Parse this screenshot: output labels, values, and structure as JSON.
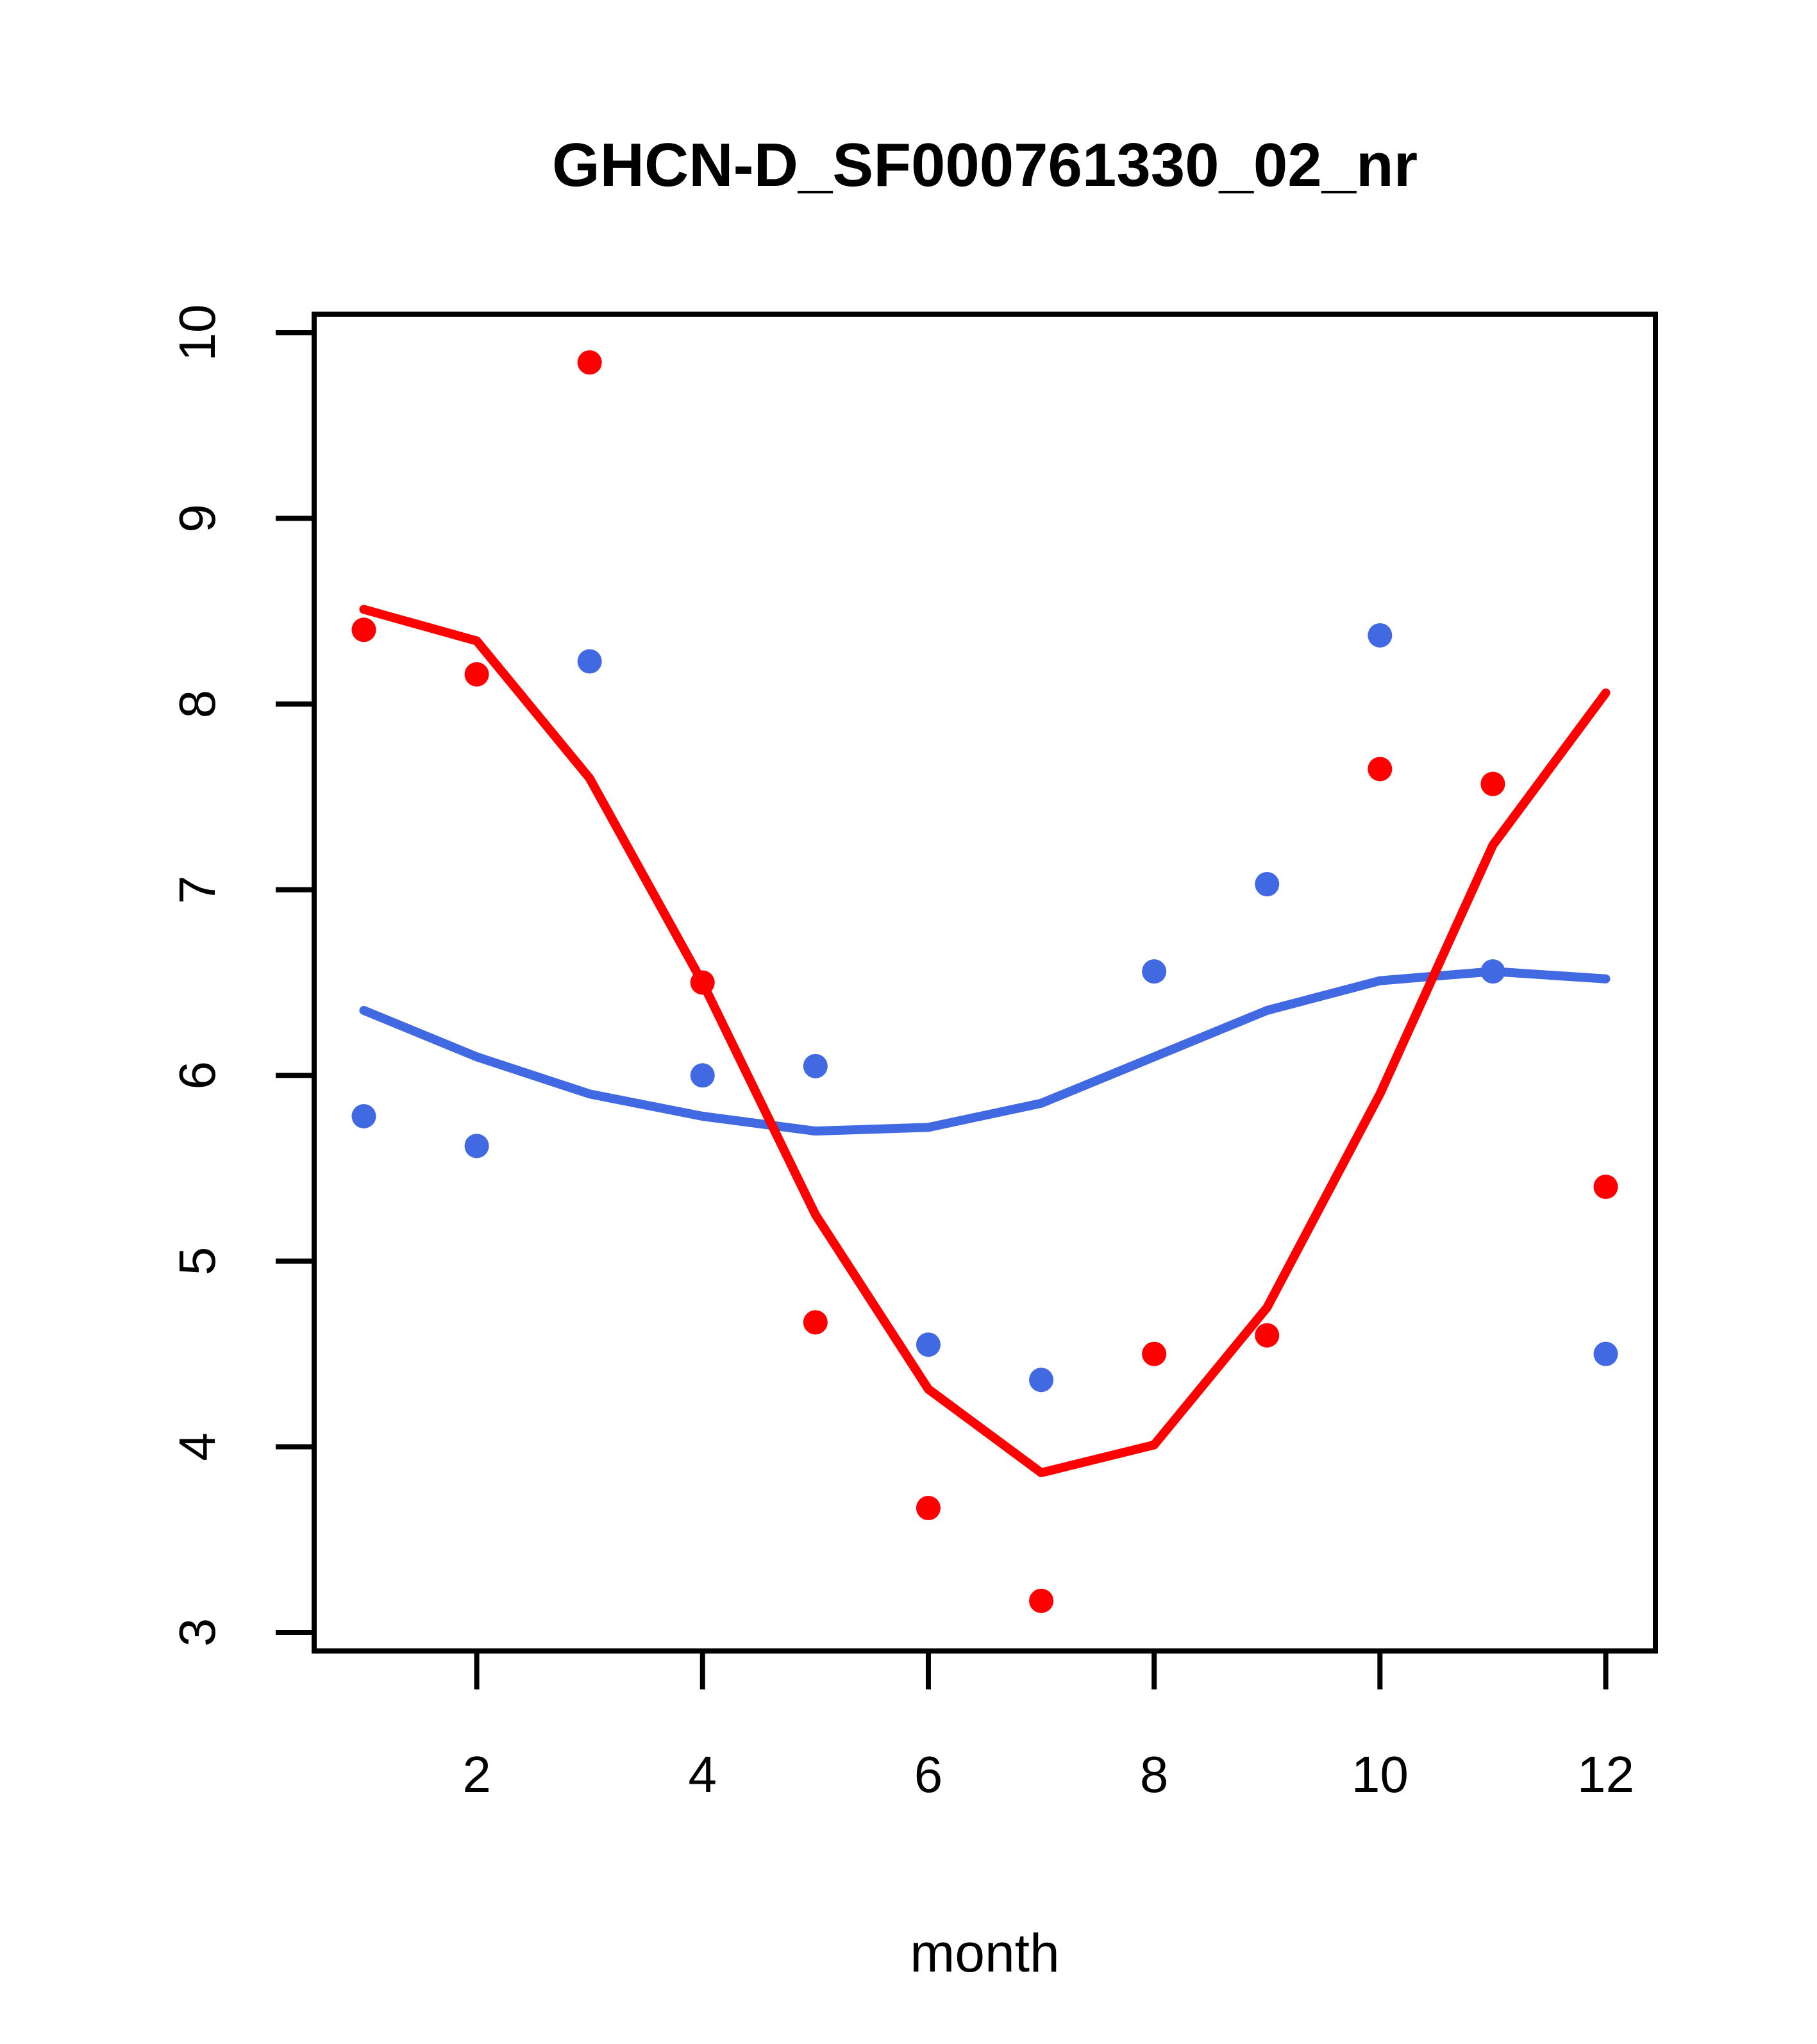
{
  "title": "GHCN-D_SF000761330_02_nr",
  "xlabel": "month",
  "colors": {
    "red_series": "#ff0000",
    "blue_series": "#4169e1",
    "axis": "#000000",
    "background": "#ffffff"
  },
  "chart_data": {
    "type": "scatter",
    "title": "GHCN-D_SF000761330_02_nr",
    "xlabel": "month",
    "ylabel": "",
    "x": [
      1,
      2,
      3,
      4,
      5,
      6,
      7,
      8,
      9,
      10,
      11,
      12
    ],
    "x_ticks": [
      2,
      4,
      6,
      8,
      10,
      12
    ],
    "y_ticks": [
      3,
      4,
      5,
      6,
      7,
      8,
      9,
      10
    ],
    "xlim": [
      0.56,
      12.44
    ],
    "ylim": [
      2.9,
      10.1
    ],
    "grid": false,
    "legend": "none",
    "series": [
      {
        "name": "red-points",
        "type": "points",
        "color": "#ff0000",
        "values": [
          8.4,
          8.16,
          9.84,
          6.5,
          4.67,
          3.67,
          3.17,
          4.5,
          4.6,
          7.65,
          7.57,
          5.4
        ]
      },
      {
        "name": "blue-points",
        "type": "points",
        "color": "#4169e1",
        "values": [
          5.78,
          5.62,
          8.23,
          6.0,
          6.05,
          4.55,
          4.36,
          6.56,
          7.03,
          8.37,
          6.56,
          4.5
        ]
      },
      {
        "name": "red-smooth-line",
        "type": "line",
        "color": "#ff0000",
        "values": [
          8.51,
          8.34,
          7.6,
          6.5,
          5.25,
          4.31,
          3.86,
          4.01,
          4.75,
          5.9,
          7.24,
          8.06
        ]
      },
      {
        "name": "blue-smooth-line",
        "type": "line",
        "color": "#4169e1",
        "values": [
          6.35,
          6.1,
          5.9,
          5.78,
          5.7,
          5.72,
          5.85,
          6.1,
          6.35,
          6.51,
          6.56,
          6.52
        ]
      }
    ]
  }
}
